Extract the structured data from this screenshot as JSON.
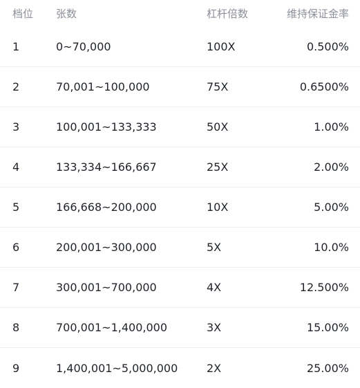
{
  "headers": {
    "tier": "档位",
    "quantity": "张数",
    "leverage": "杠杆倍数",
    "margin_rate": "维持保证金率"
  },
  "rows": [
    {
      "tier": "1",
      "quantity": "0~70,000",
      "leverage": "100X",
      "margin_rate": "0.500%"
    },
    {
      "tier": "2",
      "quantity": "70,001~100,000",
      "leverage": "75X",
      "margin_rate": "0.6500%"
    },
    {
      "tier": "3",
      "quantity": "100,001~133,333",
      "leverage": "50X",
      "margin_rate": "1.00%"
    },
    {
      "tier": "4",
      "quantity": "133,334~166,667",
      "leverage": "25X",
      "margin_rate": "2.00%"
    },
    {
      "tier": "5",
      "quantity": "166,668~200,000",
      "leverage": "10X",
      "margin_rate": "5.00%"
    },
    {
      "tier": "6",
      "quantity": "200,001~300,000",
      "leverage": "5X",
      "margin_rate": "10.0%"
    },
    {
      "tier": "7",
      "quantity": "300,001~700,000",
      "leverage": "4X",
      "margin_rate": "12.500%"
    },
    {
      "tier": "8",
      "quantity": "700,001~1,400,000",
      "leverage": "3X",
      "margin_rate": "15.00%"
    },
    {
      "tier": "9",
      "quantity": "1,400,001~5,000,000",
      "leverage": "2X",
      "margin_rate": "25.00%"
    }
  ]
}
